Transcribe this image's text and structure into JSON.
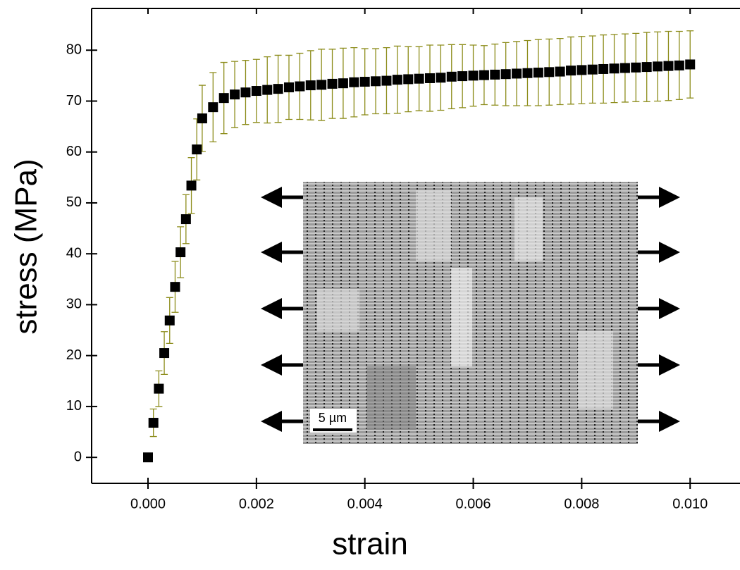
{
  "chart_data": {
    "type": "scatter",
    "x_label": "strain",
    "y_label": "stress  (MPa)",
    "xlim": [
      -0.00104,
      0.01092
    ],
    "ylim": [
      -5.1,
      88.2
    ],
    "xticks": [
      {
        "value": 0,
        "label": "0.000"
      },
      {
        "value": 0.002,
        "label": "0.002"
      },
      {
        "value": 0.004,
        "label": "0.004"
      },
      {
        "value": 0.006,
        "label": "0.006"
      },
      {
        "value": 0.008,
        "label": "0.008"
      },
      {
        "value": 0.01,
        "label": "0.010"
      }
    ],
    "yticks": [
      0,
      10,
      20,
      30,
      40,
      50,
      60,
      70,
      80
    ],
    "color": "#000000",
    "error_color": "#8c8c1a",
    "annotations": [
      "5 µm"
    ],
    "x": [
      0,
      0.0001,
      0.0002,
      0.0003,
      0.0004,
      0.0005,
      0.0006,
      0.0007,
      0.0008,
      0.0009,
      0.001,
      0.0012,
      0.0014,
      0.0016,
      0.0018,
      0.002,
      0.0022,
      0.0024,
      0.0026,
      0.0028,
      0.003,
      0.0032,
      0.0034,
      0.0036,
      0.0038,
      0.004,
      0.0042,
      0.0044,
      0.0046,
      0.0048,
      0.005,
      0.0052,
      0.0054,
      0.0056,
      0.0058,
      0.006,
      0.0062,
      0.0064,
      0.0066,
      0.0068,
      0.007,
      0.0072,
      0.0074,
      0.0076,
      0.0078,
      0.008,
      0.0082,
      0.0084,
      0.0086,
      0.0088,
      0.009,
      0.0092,
      0.0094,
      0.0096,
      0.0098,
      0.01
    ],
    "values": [
      0,
      6.8,
      13.5,
      20.5,
      26.9,
      33.5,
      40.3,
      46.8,
      53.4,
      60.5,
      66.6,
      68.8,
      70.6,
      71.3,
      71.7,
      72.0,
      72.2,
      72.4,
      72.7,
      72.9,
      73.1,
      73.2,
      73.4,
      73.5,
      73.7,
      73.8,
      73.9,
      74.0,
      74.2,
      74.3,
      74.4,
      74.5,
      74.6,
      74.8,
      74.9,
      75.0,
      75.1,
      75.2,
      75.3,
      75.4,
      75.5,
      75.6,
      75.7,
      75.8,
      76.0,
      76.1,
      76.2,
      76.3,
      76.4,
      76.5,
      76.6,
      76.7,
      76.8,
      76.9,
      77.0,
      77.2
    ],
    "errors": [
      0,
      2.7,
      3.5,
      4.2,
      4.5,
      5.0,
      5.0,
      4.8,
      5.5,
      6.0,
      6.5,
      6.8,
      7.0,
      6.5,
      6.3,
      6.2,
      6.5,
      6.6,
      6.3,
      6.5,
      6.8,
      7.0,
      6.8,
      6.9,
      6.8,
      6.5,
      6.4,
      6.5,
      6.6,
      6.4,
      6.3,
      6.5,
      6.4,
      6.3,
      6.2,
      6.0,
      5.8,
      6.0,
      6.2,
      6.3,
      6.4,
      6.5,
      6.5,
      6.5,
      6.6,
      6.6,
      6.6,
      6.7,
      6.7,
      6.7,
      6.7,
      6.8,
      6.8,
      6.8,
      6.7,
      6.6
    ]
  }
}
